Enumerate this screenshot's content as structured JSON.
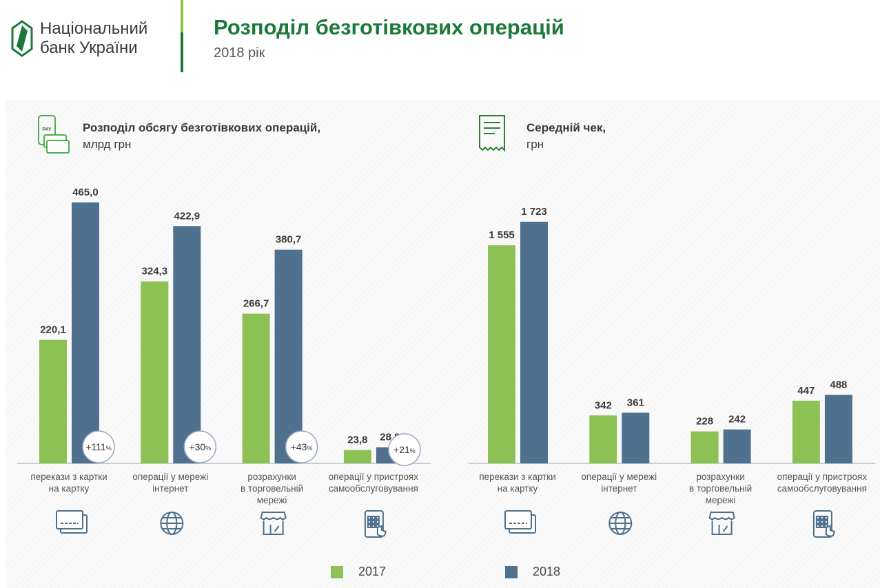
{
  "header": {
    "logo_text": [
      "Національний",
      "банк України"
    ],
    "title": "Розподіл безготівкових операцій",
    "subtitle": "2018 рік"
  },
  "colors": {
    "y2017": "#8dc153",
    "y2018": "#4f718d",
    "brand": "#1b7a3a"
  },
  "legend": [
    "2017",
    "2018"
  ],
  "chart_data": [
    {
      "type": "bar",
      "title": "Розподіл обсягу безготівкових операцій,",
      "unit": "млрд грн",
      "icon": "pay-phone-card-icon",
      "categories": [
        [
          "перекази з картки",
          "на картку"
        ],
        [
          "операції у мережі",
          "інтернет"
        ],
        [
          "розрахунки",
          "в торговельній",
          "мережі"
        ],
        [
          "операції у пристроях",
          "самообслуговування"
        ]
      ],
      "category_icons": [
        "credit-cards-icon",
        "globe-icon",
        "storefront-icon",
        "touchscreen-terminal-icon"
      ],
      "series": [
        {
          "name": "2017",
          "values": [
            220.1,
            324.3,
            266.7,
            23.8
          ],
          "labels": [
            "220,1",
            "324,3",
            "266,7",
            "23,8"
          ]
        },
        {
          "name": "2018",
          "values": [
            465.0,
            422.9,
            380.7,
            28.8
          ],
          "labels": [
            "465,0",
            "422,9",
            "380,7",
            "28,8"
          ]
        }
      ],
      "growth": [
        "+111",
        "+30",
        "+43",
        "+21"
      ],
      "ylim": [
        0,
        465
      ]
    },
    {
      "type": "bar",
      "title": "Середній чек,",
      "unit": "грн",
      "icon": "receipt-icon",
      "categories": [
        [
          "перекази з картки",
          "на картку"
        ],
        [
          "операції у мережі",
          "інтернет"
        ],
        [
          "розрахунки",
          "в торговельній",
          "мережі"
        ],
        [
          "операції у пристроях",
          "самообслуговування"
        ]
      ],
      "category_icons": [
        "credit-cards-icon",
        "globe-icon",
        "storefront-icon",
        "touchscreen-terminal-icon"
      ],
      "series": [
        {
          "name": "2017",
          "values": [
            1555,
            342,
            228,
            447
          ],
          "labels": [
            "1 555",
            "342",
            "228",
            "447"
          ]
        },
        {
          "name": "2018",
          "values": [
            1723,
            361,
            242,
            488
          ],
          "labels": [
            "1 723",
            "361",
            "242",
            "488"
          ]
        }
      ],
      "ylim": [
        0,
        1723
      ]
    }
  ]
}
